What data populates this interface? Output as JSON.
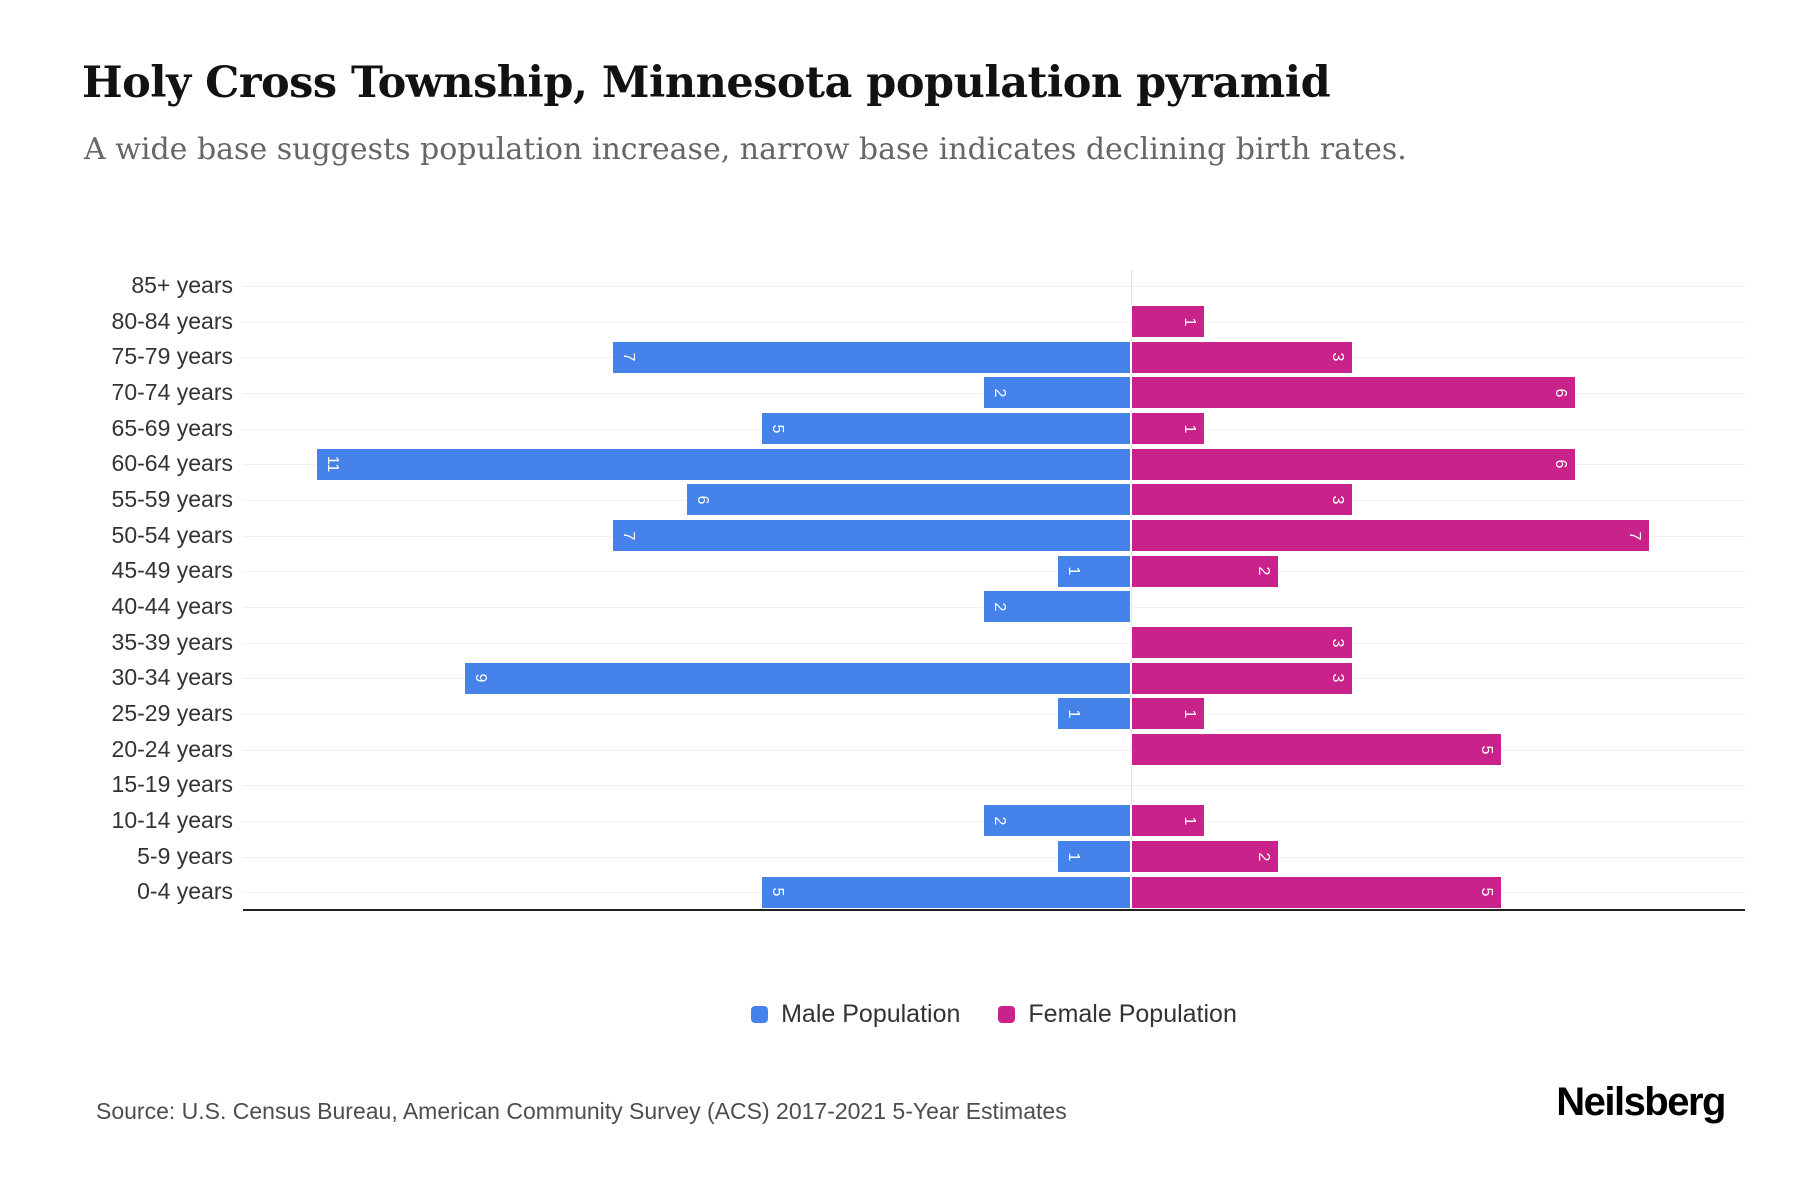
{
  "header": {
    "title": "Holy Cross Township, Minnesota population pyramid",
    "subtitle": "A wide base suggests population increase, narrow base indicates declining birth rates."
  },
  "chart_data": {
    "type": "bar",
    "variant": "population-pyramid",
    "title": "Holy Cross Township, Minnesota population pyramid",
    "categories": [
      "85+ years",
      "80-84 years",
      "75-79 years",
      "70-74 years",
      "65-69 years",
      "60-64 years",
      "55-59 years",
      "50-54 years",
      "45-49 years",
      "40-44 years",
      "35-39 years",
      "30-34 years",
      "25-29 years",
      "20-24 years",
      "15-19 years",
      "10-14 years",
      "5-9 years",
      "0-4 years"
    ],
    "series": [
      {
        "name": "Male Population",
        "direction": "left",
        "color": "#4583EA",
        "values": [
          0,
          0,
          7,
          2,
          5,
          11,
          6,
          7,
          1,
          2,
          0,
          9,
          1,
          0,
          0,
          2,
          1,
          5
        ]
      },
      {
        "name": "Female Population",
        "direction": "right",
        "color": "#C9228A",
        "values": [
          0,
          1,
          3,
          6,
          1,
          6,
          3,
          7,
          2,
          0,
          3,
          3,
          1,
          5,
          0,
          1,
          2,
          5
        ]
      }
    ],
    "axis": {
      "male_side_max": 12,
      "female_side_max": 8.3,
      "value_labels_rotation_deg": 90
    },
    "grid": true,
    "legend_position": "bottom"
  },
  "legend": {
    "male_label": "Male Population",
    "female_label": "Female Population"
  },
  "footer": {
    "source": "Source: U.S. Census Bureau, American Community Survey (ACS) 2017-2021 5-Year Estimates",
    "brand": "Neilsberg"
  }
}
